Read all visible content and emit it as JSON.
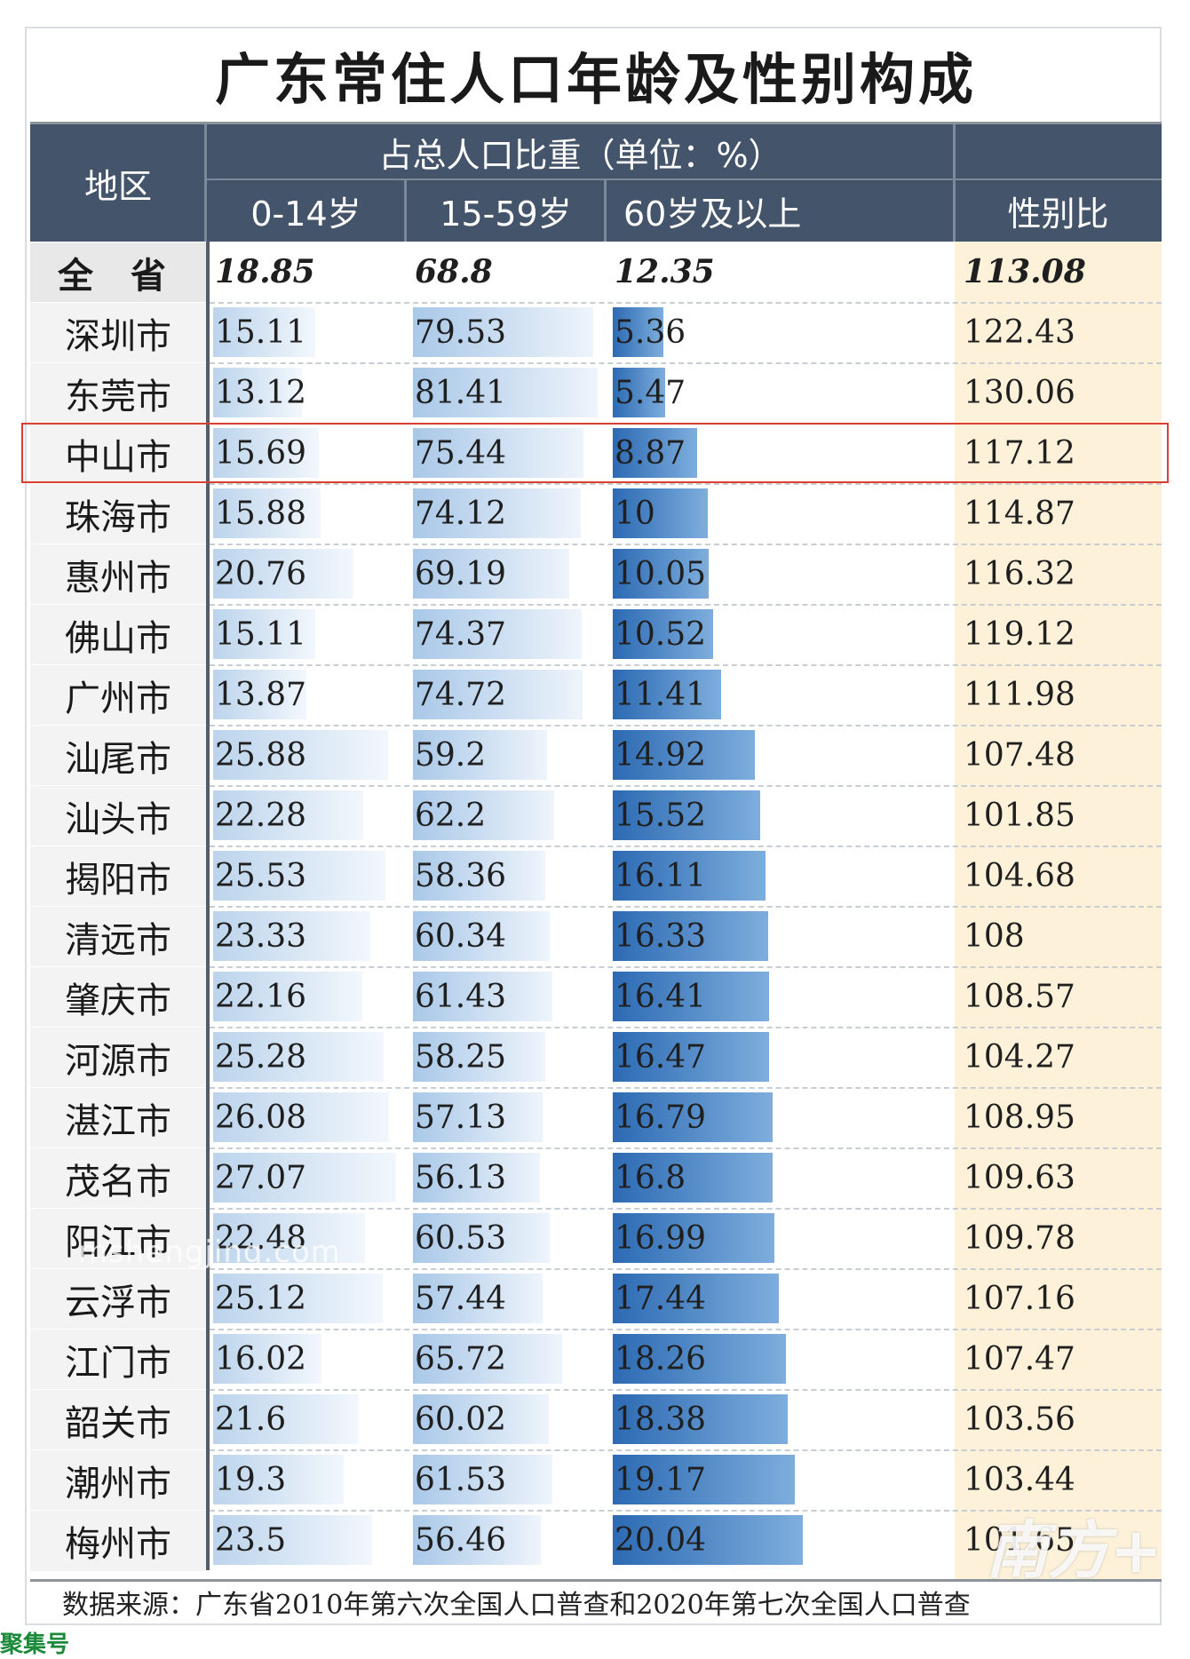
{
  "chart_data": {
    "type": "table",
    "title": "广东常住人口年龄及性别构成",
    "header": {
      "region": "地区",
      "group": "占总人口比重（单位：%）",
      "columns": [
        "0-14岁",
        "15-59岁",
        "60岁及以上"
      ],
      "sex_ratio": "性别比"
    },
    "province": {
      "region": "全 省",
      "values": [
        "18.85",
        "68.8",
        "12.35"
      ],
      "sex_ratio": "113.08"
    },
    "rows": [
      {
        "region": "深圳市",
        "values": [
          15.11,
          79.53,
          5.36
        ],
        "sex_ratio": "122.43"
      },
      {
        "region": "东莞市",
        "values": [
          13.12,
          81.41,
          5.47
        ],
        "sex_ratio": "130.06"
      },
      {
        "region": "中山市",
        "values": [
          15.69,
          75.44,
          8.87
        ],
        "sex_ratio": "117.12"
      },
      {
        "region": "珠海市",
        "values": [
          15.88,
          74.12,
          10
        ],
        "sex_ratio": "114.87"
      },
      {
        "region": "惠州市",
        "values": [
          20.76,
          69.19,
          10.05
        ],
        "sex_ratio": "116.32"
      },
      {
        "region": "佛山市",
        "values": [
          15.11,
          74.37,
          10.52
        ],
        "sex_ratio": "119.12"
      },
      {
        "region": "广州市",
        "values": [
          13.87,
          74.72,
          11.41
        ],
        "sex_ratio": "111.98"
      },
      {
        "region": "汕尾市",
        "values": [
          25.88,
          59.2,
          14.92
        ],
        "sex_ratio": "107.48"
      },
      {
        "region": "汕头市",
        "values": [
          22.28,
          62.2,
          15.52
        ],
        "sex_ratio": "101.85"
      },
      {
        "region": "揭阳市",
        "values": [
          25.53,
          58.36,
          16.11
        ],
        "sex_ratio": "104.68"
      },
      {
        "region": "清远市",
        "values": [
          23.33,
          60.34,
          16.33
        ],
        "sex_ratio": "108"
      },
      {
        "region": "肇庆市",
        "values": [
          22.16,
          61.43,
          16.41
        ],
        "sex_ratio": "108.57"
      },
      {
        "region": "河源市",
        "values": [
          25.28,
          58.25,
          16.47
        ],
        "sex_ratio": "104.27"
      },
      {
        "region": "湛江市",
        "values": [
          26.08,
          57.13,
          16.79
        ],
        "sex_ratio": "108.95"
      },
      {
        "region": "茂名市",
        "values": [
          27.07,
          56.13,
          16.8
        ],
        "sex_ratio": "109.63"
      },
      {
        "region": "阳江市",
        "values": [
          22.48,
          60.53,
          16.99
        ],
        "sex_ratio": "109.78"
      },
      {
        "region": "云浮市",
        "values": [
          25.12,
          57.44,
          17.44
        ],
        "sex_ratio": "107.16"
      },
      {
        "region": "江门市",
        "values": [
          16.02,
          65.72,
          18.26
        ],
        "sex_ratio": "107.47"
      },
      {
        "region": "韶关市",
        "values": [
          21.6,
          60.02,
          18.38
        ],
        "sex_ratio": "103.56"
      },
      {
        "region": "潮州市",
        "values": [
          19.3,
          61.53,
          19.17
        ],
        "sex_ratio": "103.44"
      },
      {
        "region": "梅州市",
        "values": [
          23.5,
          56.46,
          20.04
        ],
        "sex_ratio": "101.65"
      }
    ],
    "highlighted_region": "中山市",
    "colors": {
      "header_bg": "#44546a",
      "bar_light": "#dbe8f5",
      "bar_mid": "#9cc1e4",
      "bar_dark": "#2e6db5",
      "sex_ratio_bg": "#fdf2d9",
      "highlight_border": "#d94030"
    }
  },
  "source": "数据来源：广东省2010年第六次全国人口普查和2020年第七次全国人口普查",
  "watermark": "mshengjing.com",
  "logo": "南方+",
  "tag": "聚集号"
}
